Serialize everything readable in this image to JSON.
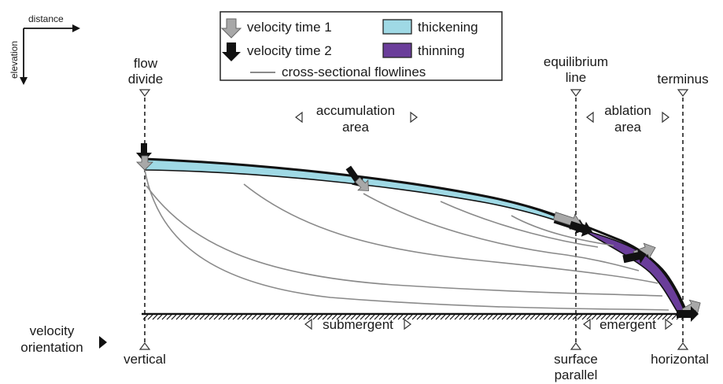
{
  "axes_key": {
    "x_label": "distance",
    "y_label": "elevation"
  },
  "legend": {
    "velocity_time_1": "velocity time 1",
    "velocity_time_2": "velocity time 2",
    "thickening": "thickening",
    "thinning": "thinning",
    "flowlines": "cross-sectional flowlines",
    "colors": {
      "thickening": "#9fd9e5",
      "thinning": "#6a3d9a",
      "arrow_time_1": "#a8a8a8",
      "arrow_time_2": "#111111",
      "flowline": "#8a8a8a"
    }
  },
  "top_labels": {
    "flow_divide_1": "flow",
    "flow_divide_2": "divide",
    "accumulation_1": "accumulation",
    "accumulation_2": "area",
    "equilibrium_1": "equilibrium",
    "equilibrium_2": "line",
    "ablation_1": "ablation",
    "ablation_2": "area",
    "terminus": "terminus"
  },
  "bottom_labels": {
    "velocity_orientation_1": "velocity",
    "velocity_orientation_2": "orientation",
    "vertical": "vertical",
    "submergent": "submergent",
    "emergent": "emergent",
    "surface_parallel_1": "surface",
    "surface_parallel_2": "parallel",
    "horizontal": "horizontal"
  }
}
